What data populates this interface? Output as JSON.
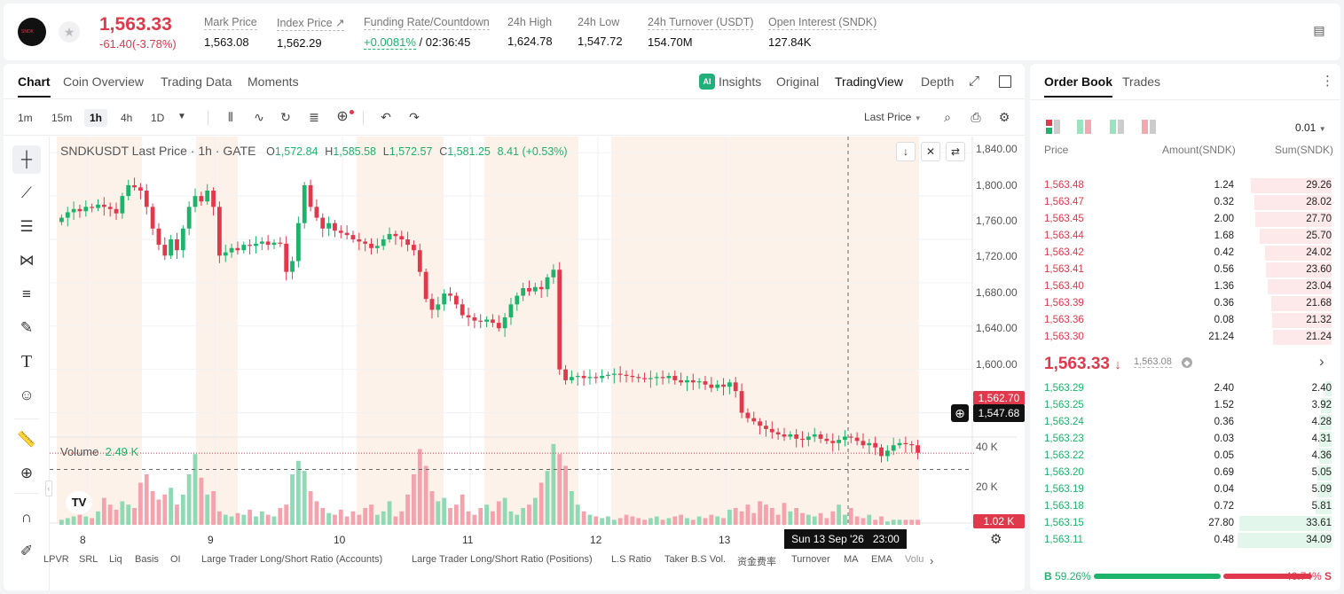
{
  "ticker": {
    "logo_text": "SNDK",
    "price": "1,563.33",
    "change": "-61.40(-3.78%)",
    "stats": [
      {
        "label": "Mark Price",
        "value": "1,563.08"
      },
      {
        "label": "Index Price ↗",
        "value": "1,562.29"
      },
      {
        "label": "Funding Rate/Countdown",
        "value_green": "+0.0081%",
        "value": "/ 02:36:45"
      },
      {
        "label": "24h High",
        "value": "1,624.78"
      },
      {
        "label": "24h Low",
        "value": "1,547.72"
      },
      {
        "label": "24h Turnover (USDT)",
        "value": "154.70M"
      },
      {
        "label": "Open Interest (SNDK)",
        "value": "127.84K"
      }
    ]
  },
  "chart_tabs": [
    "Chart",
    "Coin Overview",
    "Trading Data",
    "Moments"
  ],
  "chart_tabs_right": [
    "Insights",
    "Original",
    "TradingView",
    "Depth"
  ],
  "ai_badge": "AI",
  "timeframes": [
    "1m",
    "15m",
    "1h",
    "4h",
    "1D"
  ],
  "price_source": "Last Price",
  "ohlc": {
    "symbol": "SNDKUSDT Last Price · 1h · GATE",
    "o_lbl": "O",
    "o": "1,572.84",
    "h_lbl": "H",
    "h": "1,585.58",
    "l_lbl": "L",
    "l": "1,572.57",
    "c_lbl": "C",
    "c": "1,581.25",
    "chg": "8.41 (+0.53%)"
  },
  "volume_label": "Volume",
  "volume_value": "2.49 K",
  "tv_logo": "TV",
  "price_axis": [
    "1,840.00",
    "1,800.00",
    "1,760.00",
    "1,720.00",
    "1,680.00",
    "1,640.00",
    "1,600.00"
  ],
  "vol_axis": [
    "40 K",
    "20 K"
  ],
  "last_price_tag": "1,562.70",
  "cursor_price_tag": "1,547.68",
  "vol_tag": "1.02 K",
  "x_axis": [
    "8",
    "9",
    "10",
    "11",
    "12",
    "13"
  ],
  "cursor_time": "Sun 13 Sep '26   23:00",
  "indicators": [
    "LPVR",
    "SRL",
    "Liq",
    "Basis",
    "OI",
    "Large Trader Long/Short Ratio (Accounts)",
    "Large Trader Long/Short Ratio (Positions)",
    "L.S Ratio",
    "Taker B.S Vol.",
    "资金费率",
    "Turnover",
    "MA",
    "EMA",
    "Volu"
  ],
  "colors": {
    "up": "#1db36a",
    "down": "#e0394b",
    "session": "#fdf2ea"
  },
  "chart_data": {
    "type": "candlestick",
    "interval": "1h",
    "x_ticks": [
      "8",
      "9",
      "10",
      "11",
      "12",
      "13"
    ],
    "ylim": [
      1580,
      1850
    ],
    "y_ticks": [
      1840,
      1800,
      1760,
      1720,
      1680,
      1640,
      1600
    ],
    "last_price": 1562.7,
    "cursor_price": 1547.68,
    "close_path": [
      1780,
      1785,
      1788,
      1786,
      1790,
      1789,
      1792,
      1790,
      1788,
      1784,
      1800,
      1810,
      1808,
      1805,
      1790,
      1770,
      1755,
      1745,
      1760,
      1750,
      1770,
      1790,
      1800,
      1795,
      1805,
      1790,
      1745,
      1748,
      1752,
      1750,
      1755,
      1754,
      1756,
      1758,
      1755,
      1757,
      1756,
      1730,
      1740,
      1775,
      1810,
      1790,
      1780,
      1770,
      1775,
      1768,
      1766,
      1764,
      1760,
      1758,
      1756,
      1752,
      1754,
      1760,
      1765,
      1763,
      1760,
      1755,
      1750,
      1730,
      1705,
      1695,
      1700,
      1710,
      1708,
      1700,
      1690,
      1688,
      1685,
      1684,
      1686,
      1683,
      1678,
      1688,
      1700,
      1708,
      1715,
      1712,
      1716,
      1714,
      1725,
      1732,
      1640,
      1630,
      1633,
      1634,
      1632,
      1633,
      1632,
      1634,
      1635,
      1636,
      1635,
      1634,
      1633,
      1632,
      1631,
      1632,
      1633,
      1632,
      1634,
      1630,
      1628,
      1630,
      1628,
      1629,
      1626,
      1623,
      1626,
      1624,
      1628,
      1620,
      1600,
      1595,
      1592,
      1588,
      1585,
      1582,
      1580,
      1578,
      1580,
      1576,
      1575,
      1578,
      1580,
      1576,
      1574,
      1572,
      1575,
      1578,
      1577,
      1574,
      1570,
      1572,
      1568,
      1560,
      1565,
      1570,
      1572,
      1571,
      1570,
      1563
    ],
    "volume_path": [
      3,
      4,
      5,
      6,
      5,
      4,
      8,
      16,
      12,
      9,
      14,
      12,
      10,
      25,
      30,
      20,
      15,
      18,
      22,
      12,
      18,
      30,
      42,
      28,
      18,
      20,
      8,
      6,
      5,
      7,
      6,
      9,
      5,
      8,
      6,
      5,
      10,
      12,
      30,
      38,
      32,
      20,
      14,
      10,
      7,
      6,
      9,
      5,
      8,
      6,
      10,
      12,
      6,
      8,
      14,
      5,
      8,
      18,
      30,
      45,
      35,
      20,
      14,
      16,
      10,
      12,
      18,
      8,
      6,
      10,
      12,
      8,
      14,
      16,
      8,
      6,
      10,
      12,
      16,
      25,
      32,
      48,
      42,
      35,
      20,
      12,
      8,
      6,
      5,
      4,
      5,
      3,
      4,
      6,
      5,
      4,
      3,
      4,
      5,
      3,
      4,
      5,
      6,
      4,
      3,
      5,
      4,
      6,
      5,
      4,
      9,
      10,
      8,
      12,
      7,
      14,
      12,
      10,
      6,
      13,
      8,
      10,
      7,
      6,
      5,
      7,
      4,
      8,
      12,
      6,
      10,
      5,
      4,
      6,
      3,
      5,
      2,
      3
    ]
  },
  "orderbook": {
    "tabs": [
      "Order Book",
      "Trades"
    ],
    "precision": "0.01",
    "headers": [
      "Price",
      "Amount(SNDK)",
      "Sum(SNDK)"
    ],
    "asks": [
      {
        "price": "1,563.48",
        "amount": "1.24",
        "sum": "29.26",
        "fill": 0.86
      },
      {
        "price": "1,563.47",
        "amount": "0.32",
        "sum": "28.02",
        "fill": 0.82
      },
      {
        "price": "1,563.45",
        "amount": "2.00",
        "sum": "27.70",
        "fill": 0.81
      },
      {
        "price": "1,563.44",
        "amount": "1.68",
        "sum": "25.70",
        "fill": 0.76
      },
      {
        "price": "1,563.42",
        "amount": "0.42",
        "sum": "24.02",
        "fill": 0.71
      },
      {
        "price": "1,563.41",
        "amount": "0.56",
        "sum": "23.60",
        "fill": 0.7
      },
      {
        "price": "1,563.40",
        "amount": "1.36",
        "sum": "23.04",
        "fill": 0.68
      },
      {
        "price": "1,563.39",
        "amount": "0.36",
        "sum": "21.68",
        "fill": 0.64
      },
      {
        "price": "1,563.36",
        "amount": "0.08",
        "sum": "21.32",
        "fill": 0.63
      },
      {
        "price": "1,563.30",
        "amount": "21.24",
        "sum": "21.24",
        "fill": 0.62
      }
    ],
    "mid_price": "1,563.33",
    "mid_arrow": "↓",
    "mid_mark": "1,563.08",
    "bids": [
      {
        "price": "1,563.29",
        "amount": "2.40",
        "sum": "2.40",
        "fill": 0.07
      },
      {
        "price": "1,563.25",
        "amount": "1.52",
        "sum": "3.92",
        "fill": 0.11
      },
      {
        "price": "1,563.24",
        "amount": "0.36",
        "sum": "4.28",
        "fill": 0.13
      },
      {
        "price": "1,563.23",
        "amount": "0.03",
        "sum": "4.31",
        "fill": 0.13
      },
      {
        "price": "1,563.22",
        "amount": "0.05",
        "sum": "4.36",
        "fill": 0.13
      },
      {
        "price": "1,563.20",
        "amount": "0.69",
        "sum": "5.05",
        "fill": 0.15
      },
      {
        "price": "1,563.19",
        "amount": "0.04",
        "sum": "5.09",
        "fill": 0.15
      },
      {
        "price": "1,563.18",
        "amount": "0.72",
        "sum": "5.81",
        "fill": 0.17
      },
      {
        "price": "1,563.15",
        "amount": "27.80",
        "sum": "33.61",
        "fill": 0.98
      },
      {
        "price": "1,563.11",
        "amount": "0.48",
        "sum": "34.09",
        "fill": 1.0
      }
    ],
    "buy_ratio_label": "B",
    "buy_ratio": "59.26%",
    "sell_ratio": "40.74%",
    "sell_ratio_label": "S",
    "buy_fraction": 0.5926
  }
}
